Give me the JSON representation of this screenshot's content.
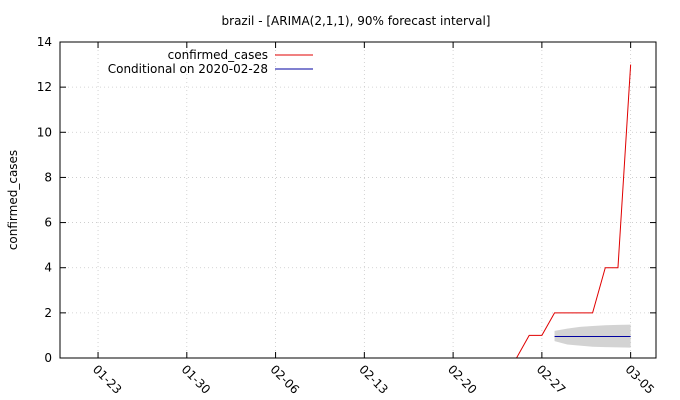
{
  "chart_data": {
    "type": "line",
    "title": "brazil -  [ARIMA(2,1,1), 90% forecast interval]",
    "xlabel": "",
    "ylabel": "confirmed_cases",
    "ylim": [
      0,
      14
    ],
    "yticks": [
      0,
      2,
      4,
      6,
      8,
      10,
      12,
      14
    ],
    "xlim": [
      "2020-01-20",
      "2020-03-07"
    ],
    "xticks": [
      {
        "date": "2020-01-23",
        "label": "01-23"
      },
      {
        "date": "2020-01-30",
        "label": "01-30"
      },
      {
        "date": "2020-02-06",
        "label": "02-06"
      },
      {
        "date": "2020-02-13",
        "label": "02-13"
      },
      {
        "date": "2020-02-20",
        "label": "02-20"
      },
      {
        "date": "2020-02-27",
        "label": "02-27"
      },
      {
        "date": "2020-03-05",
        "label": "03-05"
      }
    ],
    "grid": true,
    "legend_position": "top-left",
    "series": [
      {
        "name": "confirmed_cases",
        "color": "#e00000",
        "points": [
          [
            "2020-02-25",
            0
          ],
          [
            "2020-02-26",
            1
          ],
          [
            "2020-02-27",
            1
          ],
          [
            "2020-02-28",
            2
          ],
          [
            "2020-02-29",
            2
          ],
          [
            "2020-03-01",
            2
          ],
          [
            "2020-03-02",
            2
          ],
          [
            "2020-03-03",
            4
          ],
          [
            "2020-03-04",
            4
          ],
          [
            "2020-03-05",
            13
          ]
        ]
      },
      {
        "name": "Conditional on 2020-02-28",
        "color": "#0000a0",
        "points": [
          [
            "2020-02-28",
            0.95
          ],
          [
            "2020-02-29",
            0.95
          ],
          [
            "2020-03-01",
            0.95
          ],
          [
            "2020-03-02",
            0.95
          ],
          [
            "2020-03-03",
            0.95
          ],
          [
            "2020-03-04",
            0.95
          ],
          [
            "2020-03-05",
            0.95
          ]
        ]
      }
    ],
    "interval": {
      "color": "#d3d3d3",
      "points": [
        [
          "2020-02-28",
          0.75,
          1.2
        ],
        [
          "2020-02-29",
          0.6,
          1.3
        ],
        [
          "2020-03-01",
          0.55,
          1.38
        ],
        [
          "2020-03-02",
          0.5,
          1.42
        ],
        [
          "2020-03-03",
          0.48,
          1.45
        ],
        [
          "2020-03-04",
          0.47,
          1.47
        ],
        [
          "2020-03-05",
          0.46,
          1.48
        ]
      ]
    }
  }
}
